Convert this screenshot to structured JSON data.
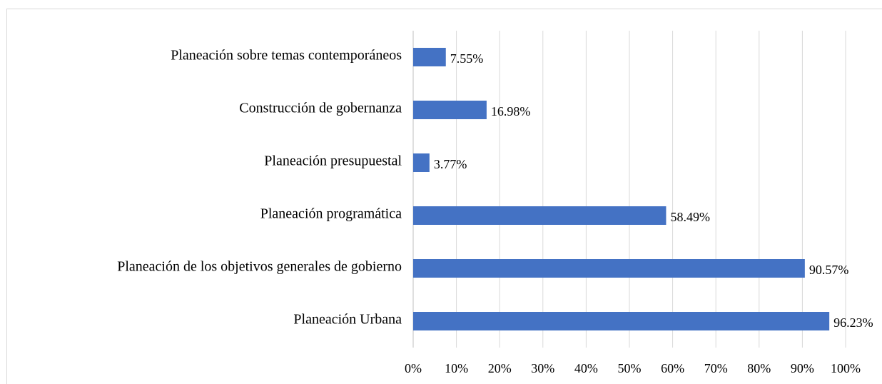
{
  "chart_data": {
    "type": "bar",
    "orientation": "horizontal",
    "categories": [
      "Planeación sobre temas contemporáneos",
      "Construcción de gobernanza",
      "Planeación presupuestal",
      "Planeación programática",
      "Planeación de los objetivos generales de gobierno",
      "Planeación Urbana"
    ],
    "values": [
      7.55,
      16.98,
      3.77,
      58.49,
      90.57,
      96.23
    ],
    "value_labels": [
      "7.55%",
      "16.98%",
      "3.77%",
      "58.49%",
      "90.57%",
      "96.23%"
    ],
    "color": "#4472c4",
    "xlim": [
      0,
      100
    ],
    "xticks": [
      {
        "value": 0,
        "label": "0%"
      },
      {
        "value": 10,
        "label": "10%"
      },
      {
        "value": 20,
        "label": "20%"
      },
      {
        "value": 30,
        "label": "30%"
      },
      {
        "value": 40,
        "label": "40%"
      },
      {
        "value": 50,
        "label": "50%"
      },
      {
        "value": 60,
        "label": "60%"
      },
      {
        "value": 70,
        "label": "70%"
      },
      {
        "value": 80,
        "label": "80%"
      },
      {
        "value": 90,
        "label": "90%"
      },
      {
        "value": 100,
        "label": "100%"
      }
    ],
    "grid": true
  }
}
